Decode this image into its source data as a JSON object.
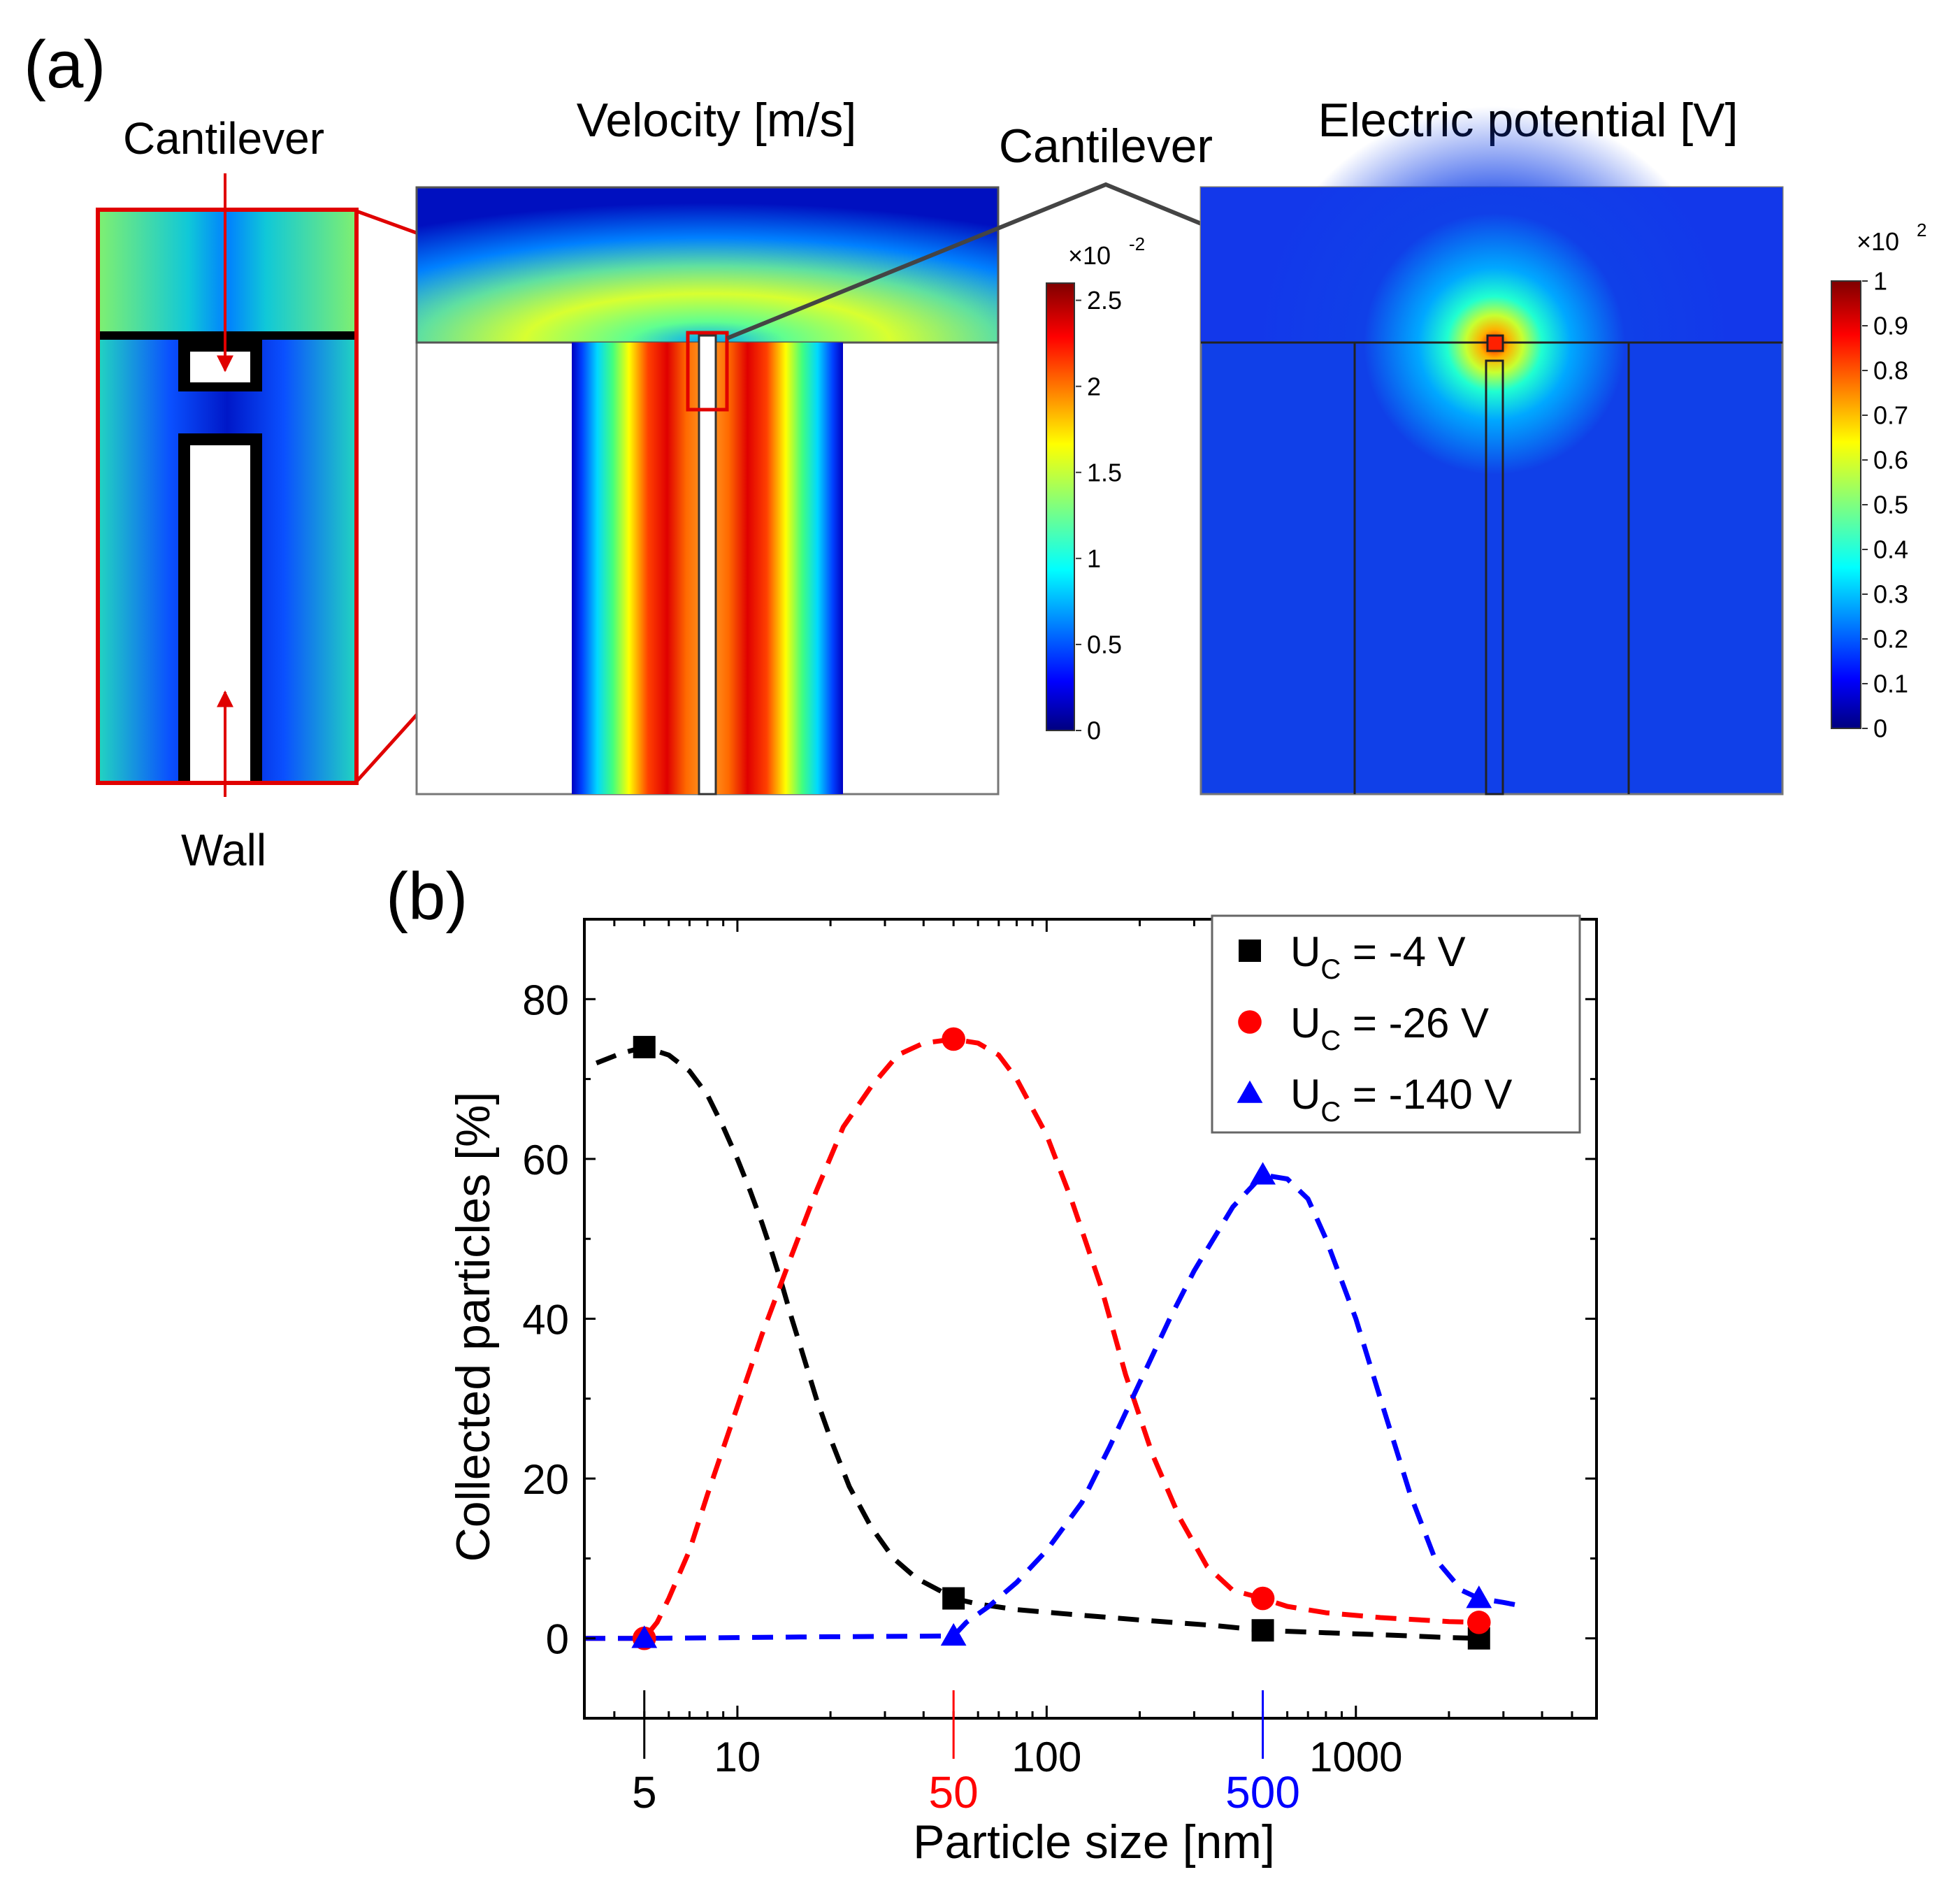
{
  "panel_a": {
    "label": "(a)",
    "zoom": {
      "top_label": "Cantilever",
      "bottom_label": "Wall"
    },
    "velocity": {
      "title": "Velocity [m/s]",
      "colorbar": {
        "exponent_base": "×10",
        "exponent": "-2",
        "ticks": [
          "0",
          "0.5",
          "1",
          "1.5",
          "2",
          "2.5"
        ],
        "max": 2.6
      }
    },
    "cantilever_label": "Cantilever",
    "potential": {
      "title": "Electric potential [V]",
      "colorbar": {
        "exponent_base": "×10",
        "exponent": "2",
        "ticks": [
          "0",
          "0.1",
          "0.2",
          "0.3",
          "0.4",
          "0.5",
          "0.6",
          "0.7",
          "0.8",
          "0.9",
          "1"
        ],
        "max": 1
      }
    }
  },
  "panel_b": {
    "label": "(b)"
  },
  "chart_data": {
    "type": "line",
    "xlabel": "Particle size [nm]",
    "ylabel": "Collected particles [%]",
    "x_scale": "log",
    "xlim": [
      3.2,
      6000
    ],
    "ylim": [
      -10,
      90
    ],
    "x_ticks": [
      10,
      100,
      1000
    ],
    "x_tick_labels": [
      "10",
      "100",
      "1000"
    ],
    "y_ticks": [
      0,
      20,
      40,
      60,
      80
    ],
    "y_tick_labels": [
      "0",
      "20",
      "40",
      "60",
      "80"
    ],
    "highlight_ticks": [
      {
        "value": 5,
        "label": "5",
        "color": "#000000"
      },
      {
        "value": 50,
        "label": "50",
        "color": "#ff0000"
      },
      {
        "value": 500,
        "label": "500",
        "color": "#0000ff"
      }
    ],
    "legend_position": "top-right",
    "series": [
      {
        "name": "U",
        "sub": "C",
        "suffix": " = -4 V",
        "color": "#000000",
        "marker": "square",
        "x": [
          5,
          50,
          500,
          2500
        ],
        "y": [
          74,
          5,
          1,
          0
        ],
        "fit_x": [
          3.5,
          4.2,
          5,
          6,
          7,
          8,
          9,
          10,
          11,
          12,
          13,
          14,
          15,
          16,
          18,
          20,
          23,
          27,
          32,
          38,
          45,
          50,
          60,
          80,
          120,
          200,
          350,
          500,
          800,
          1300,
          2000,
          2500
        ],
        "fit_y": [
          72,
          73.2,
          74,
          73,
          71,
          68,
          64,
          60,
          56,
          52,
          48,
          44,
          40,
          36.5,
          30,
          25,
          19,
          14,
          10,
          7.5,
          6,
          5,
          4.3,
          3.6,
          3,
          2.3,
          1.6,
          1,
          0.7,
          0.4,
          0.1,
          0
        ]
      },
      {
        "name": "U",
        "sub": "C",
        "suffix": " = -26 V",
        "color": "#ff0000",
        "marker": "circle",
        "x": [
          5,
          50,
          500,
          2500
        ],
        "y": [
          0,
          75,
          5,
          2
        ],
        "fit_x": [
          3.2,
          4,
          5,
          5.5,
          6,
          7,
          8,
          10,
          12,
          15,
          18,
          22,
          27,
          33,
          40,
          50,
          60,
          70,
          80,
          100,
          120,
          150,
          180,
          220,
          270,
          330,
          400,
          500,
          600,
          800,
          1200,
          2000,
          2500
        ],
        "fit_y": [
          0,
          0,
          0,
          2,
          5,
          11,
          18,
          29,
          38,
          48,
          56,
          64,
          69,
          73,
          74.5,
          75,
          74.5,
          73,
          70,
          63,
          55,
          44,
          33,
          23,
          15,
          9,
          6,
          5,
          4,
          3.2,
          2.6,
          2.1,
          2
        ]
      },
      {
        "name": "U",
        "sub": "C",
        "suffix": " = -140 V",
        "color": "#0000ff",
        "marker": "triangle",
        "x": [
          5,
          50,
          500,
          2500
        ],
        "y": [
          0,
          0.3,
          58,
          5
        ],
        "fit_x": [
          3.2,
          5,
          10,
          20,
          50,
          55,
          65,
          80,
          100,
          130,
          160,
          200,
          250,
          300,
          400,
          500,
          600,
          700,
          800,
          1000,
          1200,
          1500,
          1800,
          2200,
          2500,
          3000,
          3500
        ],
        "fit_y": [
          0,
          0,
          0.1,
          0.2,
          0.3,
          2,
          4,
          7,
          11,
          17,
          24,
          32,
          40,
          46,
          54,
          58,
          57.5,
          55,
          50,
          40,
          30,
          18,
          10,
          6,
          5,
          4.5,
          4
        ]
      }
    ]
  }
}
